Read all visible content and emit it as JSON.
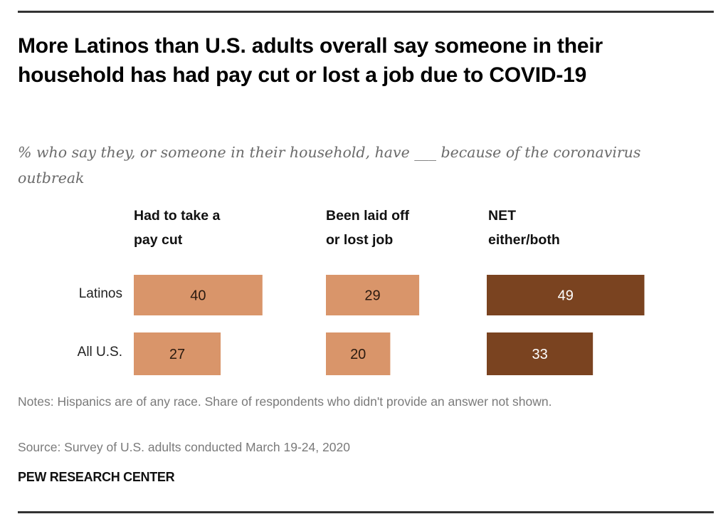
{
  "colors": {
    "light_bar": "#D9956A",
    "dark_bar": "#7A4320",
    "light_bar_label": "#2a1a10",
    "dark_bar_label": "#ffffff"
  },
  "chart_data": {
    "type": "bar",
    "orientation": "horizontal",
    "title": "More Latinos than U.S. adults overall say someone in their household has had pay cut or lost a job due to COVID-19",
    "subtitle": "% who say they, or someone in their household, have ___ because of the coronavirus outbreak",
    "categories": [
      "Latinos",
      "All U.S."
    ],
    "series": [
      {
        "name": "Had to take a pay cut",
        "header_lines": [
          "Had to take a",
          "pay cut"
        ],
        "color": "#D9956A",
        "values": [
          40,
          27
        ]
      },
      {
        "name": "Been laid off or lost job",
        "header_lines": [
          "Been laid off",
          "or lost job"
        ],
        "color": "#D9956A",
        "values": [
          29,
          20
        ]
      },
      {
        "name": "NET either/both",
        "header_lines": [
          "NET",
          "either/both"
        ],
        "color": "#7A4320",
        "values": [
          49,
          33
        ]
      }
    ],
    "xlim": [
      0,
      50
    ],
    "grid": false,
    "legend": "none (column headers)",
    "data_labels": true
  },
  "footer": {
    "notes": "Notes: Hispanics are of any race. Share of respondents who didn't provide an answer not shown.",
    "source": "Source: Survey of U.S. adults conducted March 19-24, 2020",
    "brand": "PEW RESEARCH CENTER"
  }
}
